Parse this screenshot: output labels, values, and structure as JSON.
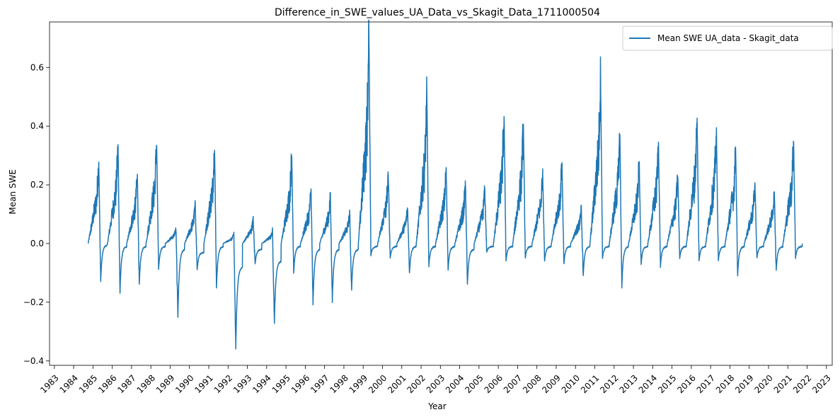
{
  "chart_data": {
    "type": "line",
    "title": "Difference_in_SWE_values_UA_Data_vs_Skagit_Data_1711000504",
    "xlabel": "Year",
    "ylabel": "Mean SWE",
    "xlim": [
      1982.75,
      2023.3
    ],
    "ylim": [
      -0.415,
      0.755
    ],
    "grid": false,
    "legend_position": "top-right",
    "x_ticks": [
      1983,
      1984,
      1985,
      1986,
      1987,
      1988,
      1989,
      1990,
      1991,
      1992,
      1993,
      1994,
      1995,
      1996,
      1997,
      1998,
      1999,
      2000,
      2001,
      2002,
      2003,
      2004,
      2005,
      2006,
      2007,
      2008,
      2009,
      2010,
      2011,
      2012,
      2013,
      2014,
      2015,
      2016,
      2017,
      2018,
      2019,
      2020,
      2021,
      2022,
      2023
    ],
    "y_ticks": [
      -0.4,
      -0.2,
      0.0,
      0.2,
      0.4,
      0.6
    ],
    "y_tick_labels": [
      "−0.4",
      "−0.2",
      "0.0",
      "0.2",
      "0.4",
      "0.6"
    ],
    "series": [
      {
        "name": "Mean SWE UA_data - Skagit_data",
        "color": "#1f77b4",
        "seasons": [
          {
            "year": 1984,
            "peak": 0.28,
            "min": -0.13,
            "neg": -0.005
          },
          {
            "year": 1985,
            "peak": 0.33,
            "min": -0.17,
            "neg": -0.01
          },
          {
            "year": 1986,
            "peak": 0.23,
            "min": -0.14,
            "neg": -0.01
          },
          {
            "year": 1987,
            "peak": 0.34,
            "min": -0.09,
            "neg": -0.01
          },
          {
            "year": 1988,
            "peak": 0.05,
            "min": -0.25,
            "neg": -0.02
          },
          {
            "year": 1989,
            "peak": 0.13,
            "min": -0.09,
            "neg": -0.03
          },
          {
            "year": 1990,
            "peak": 0.33,
            "min": -0.15,
            "neg": -0.01
          },
          {
            "year": 1991,
            "peak": 0.03,
            "min": -0.36,
            "neg": -0.08
          },
          {
            "year": 1992,
            "peak": 0.08,
            "min": -0.07,
            "neg": -0.02
          },
          {
            "year": 1993,
            "peak": 0.04,
            "min": -0.27,
            "neg": -0.06
          },
          {
            "year": 1994,
            "peak": 0.3,
            "min": -0.1,
            "neg": -0.01
          },
          {
            "year": 1995,
            "peak": 0.18,
            "min": -0.21,
            "neg": -0.02
          },
          {
            "year": 1996,
            "peak": 0.16,
            "min": -0.2,
            "neg": -0.02
          },
          {
            "year": 1997,
            "peak": 0.1,
            "min": -0.16,
            "neg": -0.02
          },
          {
            "year": 1998,
            "peak": 0.7,
            "min": -0.04,
            "neg": -0.01
          },
          {
            "year": 1999,
            "peak": 0.23,
            "min": -0.05,
            "neg": -0.01
          },
          {
            "year": 2000,
            "peak": 0.12,
            "min": -0.1,
            "neg": -0.01
          },
          {
            "year": 2001,
            "peak": 0.5,
            "min": -0.08,
            "neg": -0.01
          },
          {
            "year": 2002,
            "peak": 0.25,
            "min": -0.09,
            "neg": -0.01
          },
          {
            "year": 2003,
            "peak": 0.2,
            "min": -0.14,
            "neg": -0.02
          },
          {
            "year": 2004,
            "peak": 0.18,
            "min": -0.03,
            "neg": -0.01
          },
          {
            "year": 2005,
            "peak": 0.43,
            "min": -0.06,
            "neg": -0.01
          },
          {
            "year": 2006,
            "peak": 0.4,
            "min": -0.05,
            "neg": -0.01
          },
          {
            "year": 2007,
            "peak": 0.24,
            "min": -0.06,
            "neg": -0.01
          },
          {
            "year": 2008,
            "peak": 0.27,
            "min": -0.07,
            "neg": -0.01
          },
          {
            "year": 2009,
            "peak": 0.12,
            "min": -0.11,
            "neg": -0.01
          },
          {
            "year": 2010,
            "peak": 0.57,
            "min": -0.05,
            "neg": -0.01
          },
          {
            "year": 2011,
            "peak": 0.37,
            "min": -0.15,
            "neg": -0.01
          },
          {
            "year": 2012,
            "peak": 0.27,
            "min": -0.07,
            "neg": -0.01
          },
          {
            "year": 2013,
            "peak": 0.34,
            "min": -0.08,
            "neg": -0.01
          },
          {
            "year": 2014,
            "peak": 0.23,
            "min": -0.05,
            "neg": -0.01
          },
          {
            "year": 2015,
            "peak": 0.42,
            "min": -0.06,
            "neg": -0.01
          },
          {
            "year": 2016,
            "peak": 0.38,
            "min": -0.06,
            "neg": -0.01
          },
          {
            "year": 2017,
            "peak": 0.32,
            "min": -0.11,
            "neg": -0.01
          },
          {
            "year": 2018,
            "peak": 0.2,
            "min": -0.05,
            "neg": -0.01
          },
          {
            "year": 2019,
            "peak": 0.17,
            "min": -0.09,
            "neg": -0.01
          },
          {
            "year": 2020,
            "peak": 0.35,
            "min": -0.05,
            "neg": -0.01
          }
        ],
        "first_x": 1984.75,
        "last_x": 2021.75
      }
    ]
  }
}
